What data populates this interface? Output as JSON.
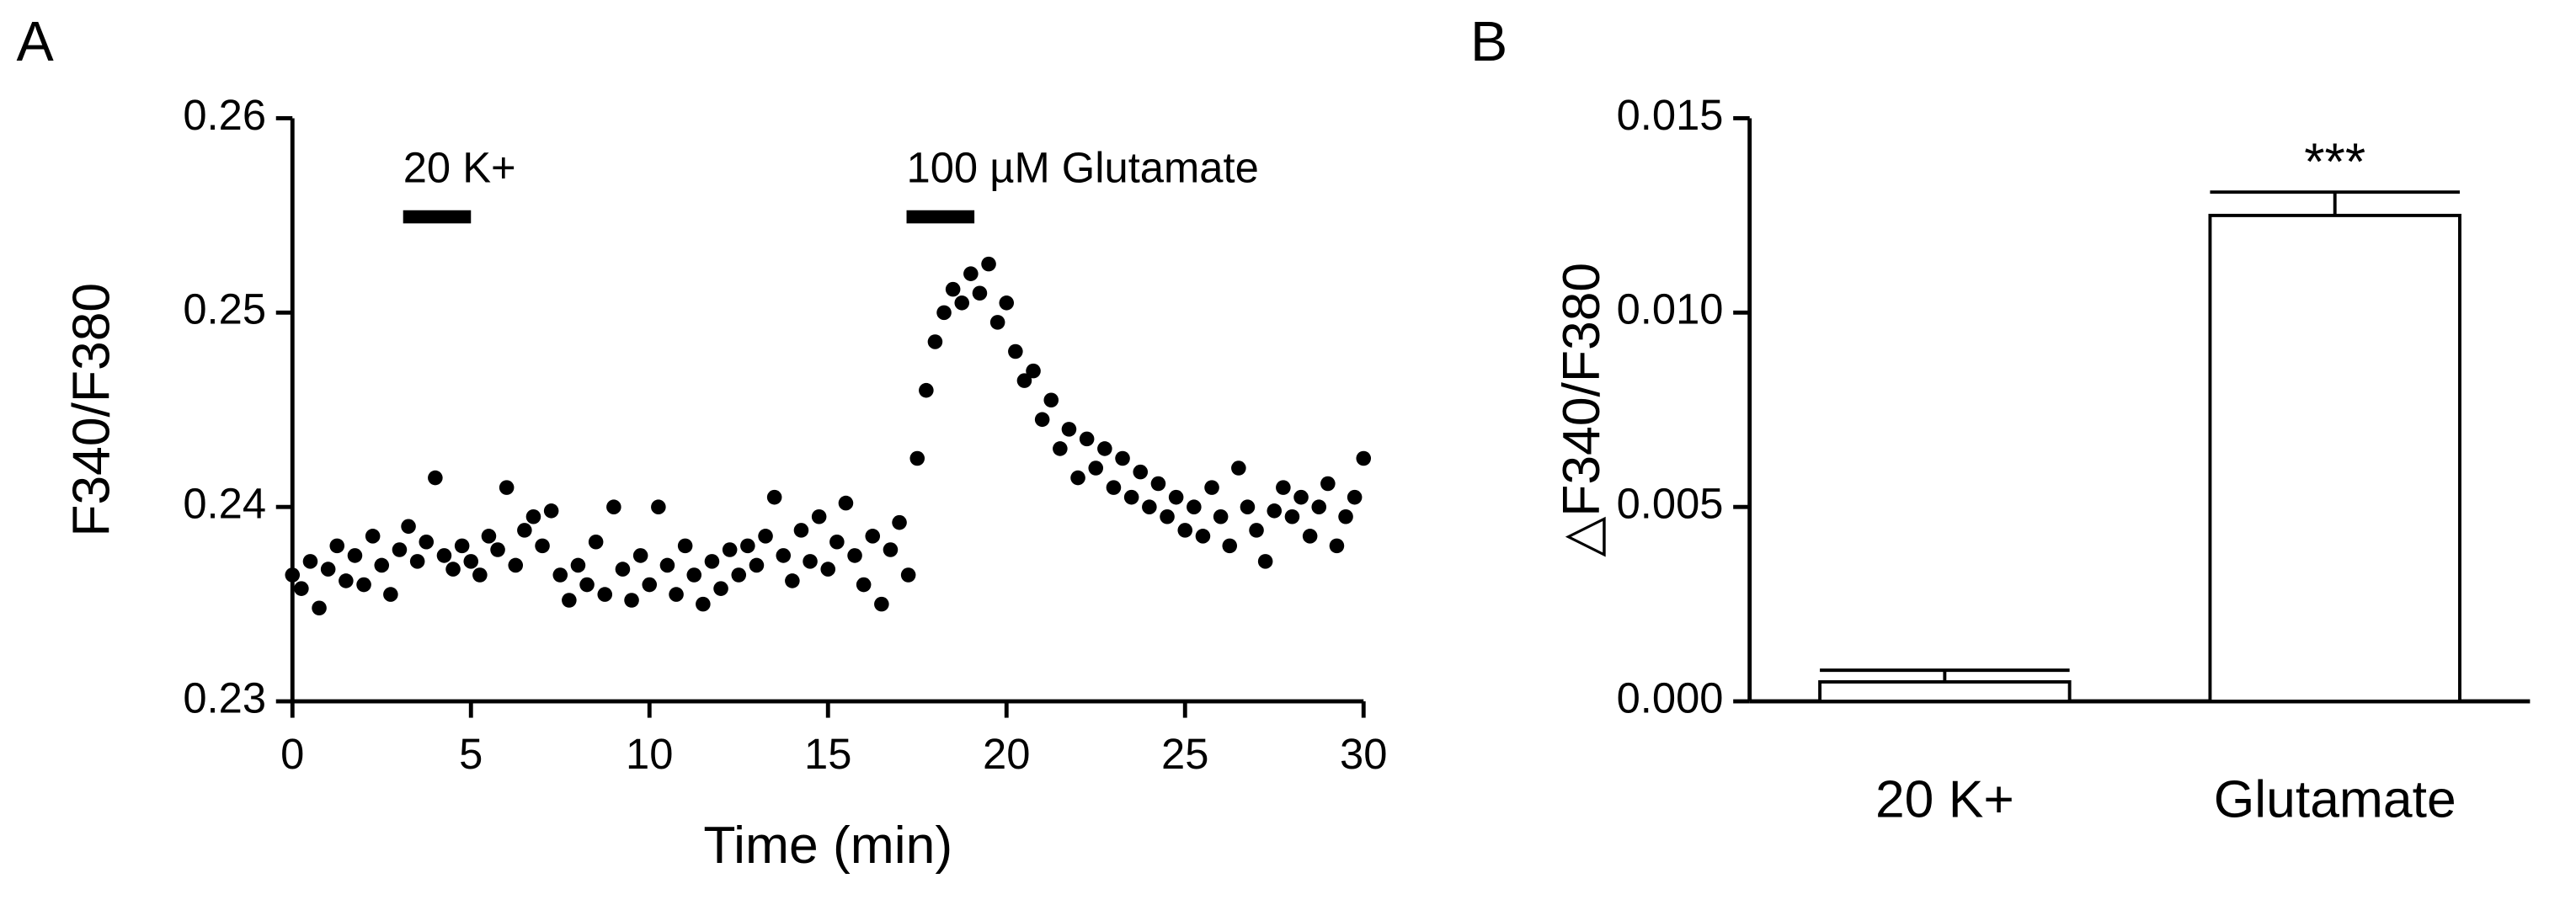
{
  "chart_data": [
    {
      "type": "scatter",
      "panel": "A",
      "xlabel": "Time (min)",
      "ylabel": "F340/F380",
      "xlim": [
        0,
        30
      ],
      "xticks": [
        0,
        5,
        10,
        15,
        20,
        25,
        30
      ],
      "ylim": [
        0.23,
        0.26
      ],
      "yticks": [
        0.23,
        0.24,
        0.25,
        0.26
      ],
      "color": "#000000",
      "annotations": [
        {
          "text": "20 K+",
          "x": [
            3.1,
            5
          ]
        },
        {
          "text": "100 µM Glutamate",
          "x": [
            17.2,
            19.1
          ]
        }
      ],
      "x": [
        0,
        0.25,
        0.5,
        0.75,
        1,
        1.25,
        1.5,
        1.75,
        2,
        2.25,
        2.5,
        2.75,
        3,
        3.25,
        3.5,
        3.75,
        4,
        4.25,
        4.5,
        4.75,
        5,
        5.25,
        5.5,
        5.75,
        6,
        6.25,
        6.5,
        6.75,
        7,
        7.25,
        7.5,
        7.75,
        8,
        8.25,
        8.5,
        8.75,
        9,
        9.25,
        9.5,
        9.75,
        10,
        10.25,
        10.5,
        10.75,
        11,
        11.25,
        11.5,
        11.75,
        12,
        12.25,
        12.5,
        12.75,
        13,
        13.25,
        13.5,
        13.75,
        14,
        14.25,
        14.5,
        14.75,
        15,
        15.25,
        15.5,
        15.75,
        16,
        16.25,
        16.5,
        16.75,
        17,
        17.25,
        17.5,
        17.75,
        18,
        18.25,
        18.5,
        18.75,
        19,
        19.25,
        19.5,
        19.75,
        20,
        20.25,
        20.5,
        20.75,
        21,
        21.25,
        21.5,
        21.75,
        22,
        22.25,
        22.5,
        22.75,
        23,
        23.25,
        23.5,
        23.75,
        24,
        24.25,
        24.5,
        24.75,
        25,
        25.25,
        25.5,
        25.75,
        26,
        26.25,
        26.5,
        26.75,
        27,
        27.25,
        27.5,
        27.75,
        28,
        28.25,
        28.5,
        28.75,
        29,
        29.25,
        29.5,
        29.75,
        30
      ],
      "values": [
        0.2365,
        0.2358,
        0.2372,
        0.2348,
        0.2368,
        0.238,
        0.2362,
        0.2375,
        0.236,
        0.2385,
        0.237,
        0.2355,
        0.2378,
        0.239,
        0.2372,
        0.2382,
        0.2415,
        0.2375,
        0.2368,
        0.238,
        0.2372,
        0.2365,
        0.2385,
        0.2378,
        0.241,
        0.237,
        0.2388,
        0.2395,
        0.238,
        0.2398,
        0.2365,
        0.2352,
        0.237,
        0.236,
        0.2382,
        0.2355,
        0.24,
        0.2368,
        0.2352,
        0.2375,
        0.236,
        0.24,
        0.237,
        0.2355,
        0.238,
        0.2365,
        0.235,
        0.2372,
        0.2358,
        0.2378,
        0.2365,
        0.238,
        0.237,
        0.2385,
        0.2405,
        0.2375,
        0.2362,
        0.2388,
        0.2372,
        0.2395,
        0.2368,
        0.2382,
        0.2402,
        0.2375,
        0.236,
        0.2385,
        0.235,
        0.2378,
        0.2392,
        0.2365,
        0.2425,
        0.246,
        0.2485,
        0.25,
        0.2512,
        0.2505,
        0.252,
        0.251,
        0.2525,
        0.2495,
        0.2505,
        0.248,
        0.2465,
        0.247,
        0.2445,
        0.2455,
        0.243,
        0.244,
        0.2415,
        0.2435,
        0.242,
        0.243,
        0.241,
        0.2425,
        0.2405,
        0.2418,
        0.24,
        0.2412,
        0.2395,
        0.2405,
        0.2388,
        0.24,
        0.2385,
        0.241,
        0.2395,
        0.238,
        0.242,
        0.24,
        0.2388,
        0.2372,
        0.2398,
        0.241,
        0.2395,
        0.2405,
        0.2385,
        0.24,
        0.2412,
        0.238,
        0.2395,
        0.2405,
        0.2425
      ]
    },
    {
      "type": "bar",
      "panel": "B",
      "ylabel": "△F340/F380",
      "categories": [
        "20 K+",
        "Glutamate"
      ],
      "values": [
        0.0005,
        0.0125
      ],
      "errors": [
        0.0003,
        0.0006
      ],
      "value_labels": [
        null,
        "***"
      ],
      "color": "#ffffff",
      "ylim": [
        0,
        0.015
      ],
      "yticks": [
        {
          "value": 0,
          "label": "0.000"
        },
        {
          "value": 0.005,
          "label": "0.005"
        },
        {
          "value": 0.01,
          "label": "0.010"
        },
        {
          "value": 0.015,
          "label": "0.015"
        }
      ]
    }
  ]
}
